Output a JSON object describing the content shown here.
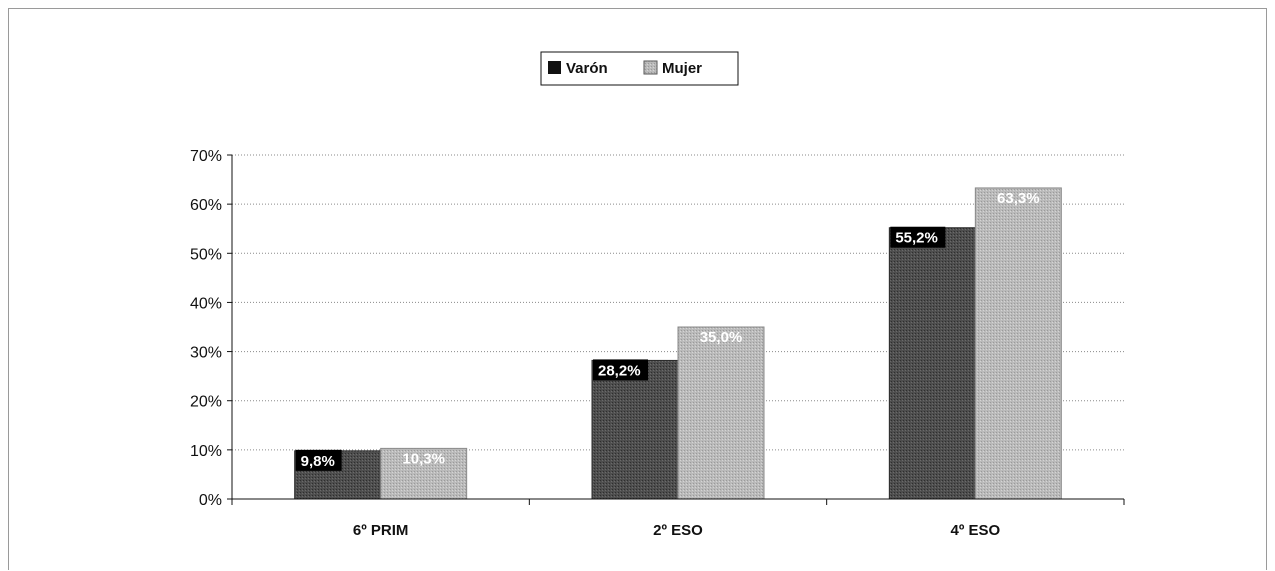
{
  "chart_data": {
    "type": "bar",
    "title": "",
    "xlabel": "",
    "ylabel": "",
    "categories": [
      "6º PRIM",
      "2º ESO",
      "4º ESO"
    ],
    "series": [
      {
        "name": "Varón",
        "values": [
          9.8,
          28.2,
          55.2
        ],
        "labels": [
          "9,8%",
          "28,2%",
          "55,2%"
        ],
        "color": "#4a4a4a",
        "label_background": "#000000"
      },
      {
        "name": "Mujer",
        "values": [
          10.3,
          35.0,
          63.3
        ],
        "labels": [
          "10,3%",
          "35,0%",
          "63,3%"
        ],
        "color": "#b5b5b5",
        "label_background": "none"
      }
    ],
    "ylim": [
      0,
      70
    ],
    "yticks": [
      0,
      10,
      20,
      30,
      40,
      50,
      60,
      70
    ],
    "ytick_labels": [
      "0%",
      "10%",
      "20%",
      "30%",
      "40%",
      "50%",
      "60%",
      "70%"
    ],
    "grid": true,
    "legend_position": "top-center"
  }
}
